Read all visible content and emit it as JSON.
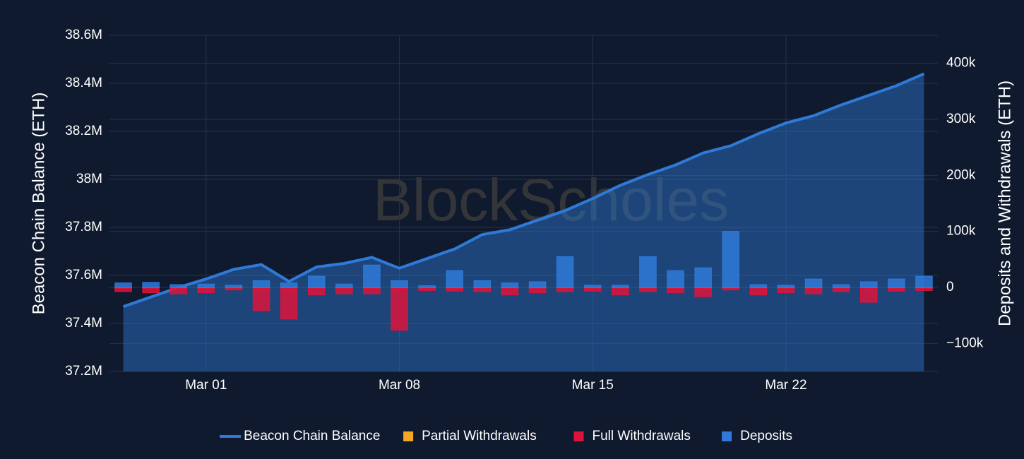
{
  "chart_data": {
    "type": "line-bar",
    "watermark": "BlockScholes",
    "y_label": "Beacon Chain Balance (ETH)",
    "y2_label": "Deposits and Withdrawals (ETH)",
    "categories": [
      null,
      null,
      null,
      "Mar 01",
      null,
      null,
      null,
      null,
      null,
      null,
      "Mar 08",
      null,
      null,
      null,
      null,
      null,
      null,
      "Mar 15",
      null,
      null,
      null,
      null,
      null,
      null,
      "Mar 22",
      null,
      null,
      null,
      null,
      null
    ],
    "ylim": [
      37200000,
      38600000
    ],
    "yticks": [
      {
        "value": 37200000,
        "label": "37.2M"
      },
      {
        "value": 37400000,
        "label": "37.4M"
      },
      {
        "value": 37600000,
        "label": "37.6M"
      },
      {
        "value": 37800000,
        "label": "37.8M"
      },
      {
        "value": 38000000,
        "label": "38M"
      },
      {
        "value": 38200000,
        "label": "38.2M"
      },
      {
        "value": 38400000,
        "label": "38.4M"
      },
      {
        "value": 38600000,
        "label": "38.6M"
      }
    ],
    "y2lim": [
      -150000,
      450000
    ],
    "y2ticks": [
      {
        "value": -100000,
        "label": "−100k"
      },
      0,
      {
        "value": 100000,
        "label": "100k"
      },
      {
        "value": 200000,
        "label": "200k"
      },
      {
        "value": 300000,
        "label": "300k"
      },
      {
        "value": 400000,
        "label": "400k"
      }
    ],
    "grid": true,
    "series": [
      {
        "name": "Beacon Chain Balance",
        "color": "#2f7ad8",
        "kind": "line",
        "values": [
          37470000,
          37510000,
          37550000,
          37585000,
          37625000,
          37645000,
          37575000,
          37635000,
          37650000,
          37675000,
          37630000,
          37670000,
          37710000,
          37770000,
          37790000,
          37830000,
          37870000,
          37920000,
          37975000,
          38020000,
          38060000,
          38110000,
          38140000,
          38190000,
          38235000,
          38265000,
          38310000,
          38350000,
          38390000,
          38440000
        ]
      },
      {
        "name": "Partial Withdrawals",
        "color": "#f5a623",
        "kind": "bar",
        "axis": "y2",
        "values": [
          -1500,
          -1500,
          -1500,
          -1500,
          -1500,
          -1500,
          -1500,
          -1500,
          -1500,
          -1500,
          -1500,
          -1500,
          -1500,
          -1500,
          -1500,
          -1500,
          -1500,
          -1500,
          -1500,
          -1500,
          -1500,
          -1500,
          -1500,
          -1500,
          -1500,
          -1500,
          -1500,
          -1500,
          -1500,
          -1500
        ]
      },
      {
        "name": "Full Withdrawals",
        "color": "#dc143c",
        "kind": "bar",
        "axis": "y2",
        "values": [
          -6000,
          -8000,
          -10000,
          -8000,
          -3000,
          -40000,
          -55000,
          -12000,
          -10000,
          -10000,
          -75000,
          -4000,
          -5000,
          -6000,
          -12000,
          -8000,
          -6000,
          -5000,
          -12000,
          -6000,
          -8000,
          -15000,
          -3000,
          -12000,
          -8000,
          -10000,
          -6000,
          -25000,
          -5000,
          -4000
        ]
      },
      {
        "name": "Deposits",
        "color": "#2f7ad8",
        "kind": "bar",
        "axis": "y2",
        "values": [
          8000,
          9000,
          5000,
          6000,
          4000,
          12000,
          8000,
          20000,
          6000,
          40000,
          12000,
          3000,
          30000,
          12000,
          8000,
          10000,
          55000,
          4000,
          4000,
          55000,
          30000,
          35000,
          100000,
          5000,
          4000,
          15000,
          5000,
          10000,
          15000,
          20000
        ]
      }
    ]
  }
}
